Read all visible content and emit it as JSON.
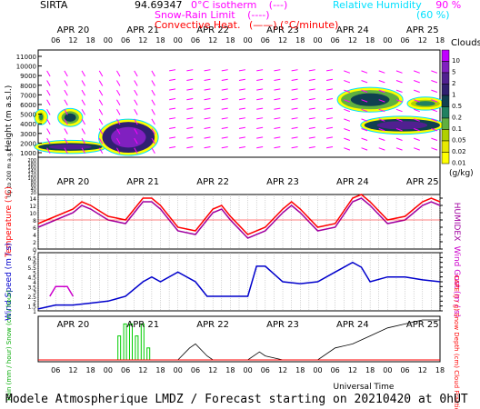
{
  "header": {
    "station": "SIRTA",
    "coords": "94.69347",
    "legend_left": [
      {
        "label": "0°C isotherm",
        "sample": "(---)",
        "color": "#ff00ff"
      },
      {
        "label": "Snow-Rain Limit",
        "sample": "(----)",
        "color": "#ff00ff"
      },
      {
        "label": "Convective Heat.",
        "sample": "(——)",
        "unit": "(°C/minute)",
        "color": "#ff0000"
      }
    ],
    "legend_right": [
      {
        "label": "Relative Humidity",
        "values": "90 %",
        "color": "#00e0ff"
      },
      {
        "label": "",
        "values": "(60 %)",
        "color": "#00e0ff"
      }
    ]
  },
  "footer": "Modele Atmospherique LMDZ / Forecast starting on 20210420 at 0hUT",
  "icon": "wind-barb-arrows",
  "colors": {
    "temp": "#ff0000",
    "humidex": "#a000a0",
    "wind": "#0000cc",
    "gust": "#cc00cc",
    "rain": "#00cc00",
    "snow": "#0000ff",
    "cape": "#ff0000",
    "frac": "#000000",
    "rh": "#00e0ff"
  },
  "chart_data": [
    {
      "type": "heatmap",
      "title": "Clouds",
      "ylabel": "Height (m a.s.l.)",
      "ylabel2": "Up to 200 m a.g.l.",
      "days": [
        "APR 20",
        "APR 21",
        "APR 22",
        "APR 23",
        "APR 24",
        "APR 25"
      ],
      "hour_ticks": [
        "06",
        "12",
        "18",
        "00"
      ],
      "y_ticks_upper": [
        11000,
        10000,
        9000,
        8000,
        7000,
        6000,
        5000,
        4000,
        3000,
        2000,
        1000
      ],
      "y_ticks_lower": [
        200,
        190,
        180,
        170,
        160,
        150,
        140,
        130,
        120,
        110,
        100,
        90,
        80,
        70,
        60,
        50,
        40,
        30,
        20,
        10
      ],
      "colorbar": {
        "label": "(g/kg)",
        "levels": [
          "0.01",
          "0.02",
          "0.05",
          "0.1",
          "0.2",
          "0.5",
          "1",
          "2",
          "5",
          "10"
        ],
        "colors": [
          "#ffff00",
          "#e8e800",
          "#b0d000",
          "#60b040",
          "#208060",
          "#104050",
          "#302070",
          "#502090",
          "#8020c0",
          "#c000ff"
        ]
      },
      "clouds": [
        {
          "t": [
            0,
            22
          ],
          "zmin": 1200,
          "zmax": 2000,
          "lev": 0.2
        },
        {
          "t": [
            22,
            40
          ],
          "zmin": 1000,
          "zmax": 4200,
          "lev": 0.5
        },
        {
          "t": [
            8,
            14
          ],
          "zmin": 4000,
          "zmax": 5300,
          "lev": 0.05
        },
        {
          "t": [
            0,
            2
          ],
          "zmin": 4200,
          "zmax": 5200,
          "lev": 0.02
        },
        {
          "t": [
            104,
            124
          ],
          "zmin": 5500,
          "zmax": 7500,
          "lev": 0.05
        },
        {
          "t": [
            112,
            138
          ],
          "zmin": 3200,
          "zmax": 4500,
          "lev": 0.2
        },
        {
          "t": [
            128,
            138
          ],
          "zmin": 5700,
          "zmax": 6500,
          "lev": 0.02
        }
      ]
    },
    {
      "type": "line",
      "ylabel": "Temperature (°C)",
      "ylabel2": "HUMIDEX",
      "yticks": [
        0,
        2,
        4,
        6,
        8,
        10,
        12,
        14
      ],
      "ylim": [
        0,
        15
      ],
      "series": [
        {
          "name": "Temperature",
          "color": "#ff0000",
          "x": [
            0,
            6,
            12,
            15,
            18,
            24,
            30,
            36,
            39,
            42,
            48,
            54,
            60,
            63,
            66,
            72,
            78,
            84,
            87,
            90,
            96,
            102,
            108,
            111,
            114,
            120,
            126,
            132,
            135,
            138
          ],
          "y": [
            7,
            9,
            11,
            13,
            12,
            9,
            8,
            14,
            14,
            12,
            6,
            5,
            11,
            12,
            9,
            4,
            6,
            11,
            13,
            11,
            6,
            7,
            14,
            15,
            13,
            8,
            9,
            13,
            14,
            13
          ]
        },
        {
          "name": "HUMIDEX",
          "color": "#a000a0",
          "x": [
            0,
            6,
            12,
            15,
            18,
            24,
            30,
            36,
            39,
            42,
            48,
            54,
            60,
            63,
            66,
            72,
            78,
            84,
            87,
            90,
            96,
            102,
            108,
            111,
            114,
            120,
            126,
            132,
            135,
            138
          ],
          "y": [
            6,
            8,
            10,
            12,
            11,
            8,
            7,
            13,
            13,
            11,
            5,
            4,
            10,
            11,
            8,
            3,
            5,
            10,
            12,
            10,
            5,
            6,
            13,
            14,
            12,
            7,
            8,
            12,
            13,
            12
          ]
        }
      ]
    },
    {
      "type": "line",
      "ylabel": "Wind Speed (m / s)",
      "ylabel2": "Wind Gust (m / s)",
      "yticks": [
        1,
        1.5,
        2,
        2.5,
        3,
        3.5,
        4,
        4.5,
        5,
        5.5,
        6,
        6.5,
        7
      ],
      "ylim": [
        1,
        7
      ],
      "series": [
        {
          "name": "Wind Speed",
          "color": "#0000cc",
          "x": [
            0,
            6,
            12,
            18,
            24,
            30,
            36,
            39,
            42,
            48,
            54,
            58,
            60,
            63,
            66,
            72,
            75,
            78,
            84,
            90,
            96,
            102,
            108,
            111,
            114,
            120,
            126,
            132,
            138
          ],
          "y": [
            1.2,
            1.6,
            1.6,
            1.8,
            2,
            2.5,
            4,
            4.5,
            4,
            5,
            4,
            2.5,
            2.5,
            2.5,
            2.5,
            2.5,
            5.6,
            5.6,
            4,
            3.8,
            4,
            5,
            6,
            5.5,
            4,
            4.5,
            4.5,
            4.2,
            4
          ]
        },
        {
          "name": "Wind Gust",
          "color": "#cc00cc",
          "x": [
            4,
            6,
            10,
            12
          ],
          "y": [
            2.5,
            3.5,
            3.5,
            2.5
          ]
        }
      ]
    },
    {
      "type": "bar",
      "ylabel": "Rain (mm / hour) Snow (cm / hour)",
      "ylabel2": "CAPE (J / g) Snow Depth (cm) Cloud Fraction",
      "xlabel": "Universal Time",
      "rain_bars": [
        {
          "x": 28,
          "h": 0.6
        },
        {
          "x": 30,
          "h": 0.9
        },
        {
          "x": 32,
          "h": 0.9
        },
        {
          "x": 34,
          "h": 0.6
        },
        {
          "x": 36,
          "h": 0.9
        },
        {
          "x": 38,
          "h": 0.3
        }
      ],
      "cloud_fraction": {
        "x": [
          0,
          20,
          24,
          30,
          36,
          40,
          42,
          48,
          52,
          54,
          58,
          60,
          72,
          76,
          78,
          84,
          90,
          96,
          102,
          108,
          114,
          120,
          126,
          132,
          138
        ],
        "y": [
          0,
          0,
          0,
          0,
          0,
          0,
          0,
          0,
          0.3,
          0.4,
          0.1,
          0,
          0,
          0.2,
          0.1,
          0,
          0,
          0,
          0.3,
          0.4,
          0.6,
          0.8,
          0.9,
          1,
          1
        ]
      }
    }
  ]
}
